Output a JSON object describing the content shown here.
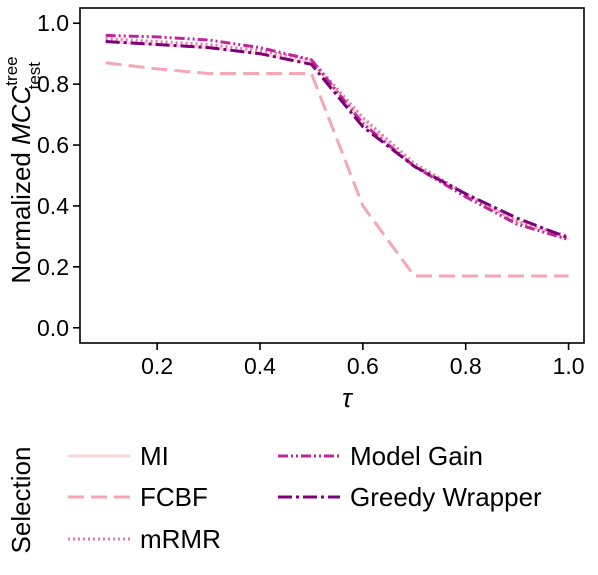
{
  "chart_data": {
    "type": "line",
    "xlabel": "τ",
    "ylabel": {
      "prefix": "Normalized ",
      "symbol": "MCC",
      "superscript": "tree",
      "subscript": "test"
    },
    "xlim": [
      0.05,
      1.03
    ],
    "ylim": [
      -0.05,
      1.05
    ],
    "xticks": [
      "0.2",
      "0.4",
      "0.6",
      "0.8",
      "1.0"
    ],
    "xtick_values": [
      0.2,
      0.4,
      0.6,
      0.8,
      1.0
    ],
    "yticks": [
      "0.0",
      "0.2",
      "0.4",
      "0.6",
      "0.8",
      "1.0"
    ],
    "ytick_values": [
      0.0,
      0.2,
      0.4,
      0.6,
      0.8,
      1.0
    ],
    "grid": false,
    "x": [
      0.1,
      0.2,
      0.3,
      0.4,
      0.5,
      0.6,
      0.7,
      0.8,
      0.9,
      1.0
    ],
    "series": [
      {
        "name": "MI",
        "color": "#fbd5d5",
        "dash": "",
        "width": 3,
        "values": [
          0.94,
          0.93,
          0.92,
          0.9,
          0.87,
          0.68,
          0.53,
          0.44,
          0.35,
          0.29
        ]
      },
      {
        "name": "FCBF",
        "color": "#f7a6b4",
        "dash": "16,7",
        "width": 3,
        "values": [
          0.87,
          0.85,
          0.835,
          0.835,
          0.835,
          0.4,
          0.17,
          0.17,
          0.17,
          0.17
        ]
      },
      {
        "name": "mRMR",
        "color": "#ea76b0",
        "dash": "2,3",
        "width": 3,
        "values": [
          0.95,
          0.94,
          0.93,
          0.91,
          0.88,
          0.69,
          0.54,
          0.44,
          0.35,
          0.3
        ]
      },
      {
        "name": "Model Gain",
        "color": "#c2259a",
        "dash": "10,3,2,3,2,3",
        "width": 3,
        "values": [
          0.96,
          0.955,
          0.945,
          0.92,
          0.88,
          0.67,
          0.53,
          0.43,
          0.34,
          0.29
        ]
      },
      {
        "name": "Greedy Wrapper",
        "color": "#7a0177",
        "dash": "14,4,3,4",
        "width": 3,
        "values": [
          0.94,
          0.93,
          0.92,
          0.9,
          0.865,
          0.66,
          0.53,
          0.44,
          0.36,
          0.295
        ]
      }
    ],
    "legend": {
      "title": "Selection",
      "placement": "below",
      "columns": 2
    }
  }
}
